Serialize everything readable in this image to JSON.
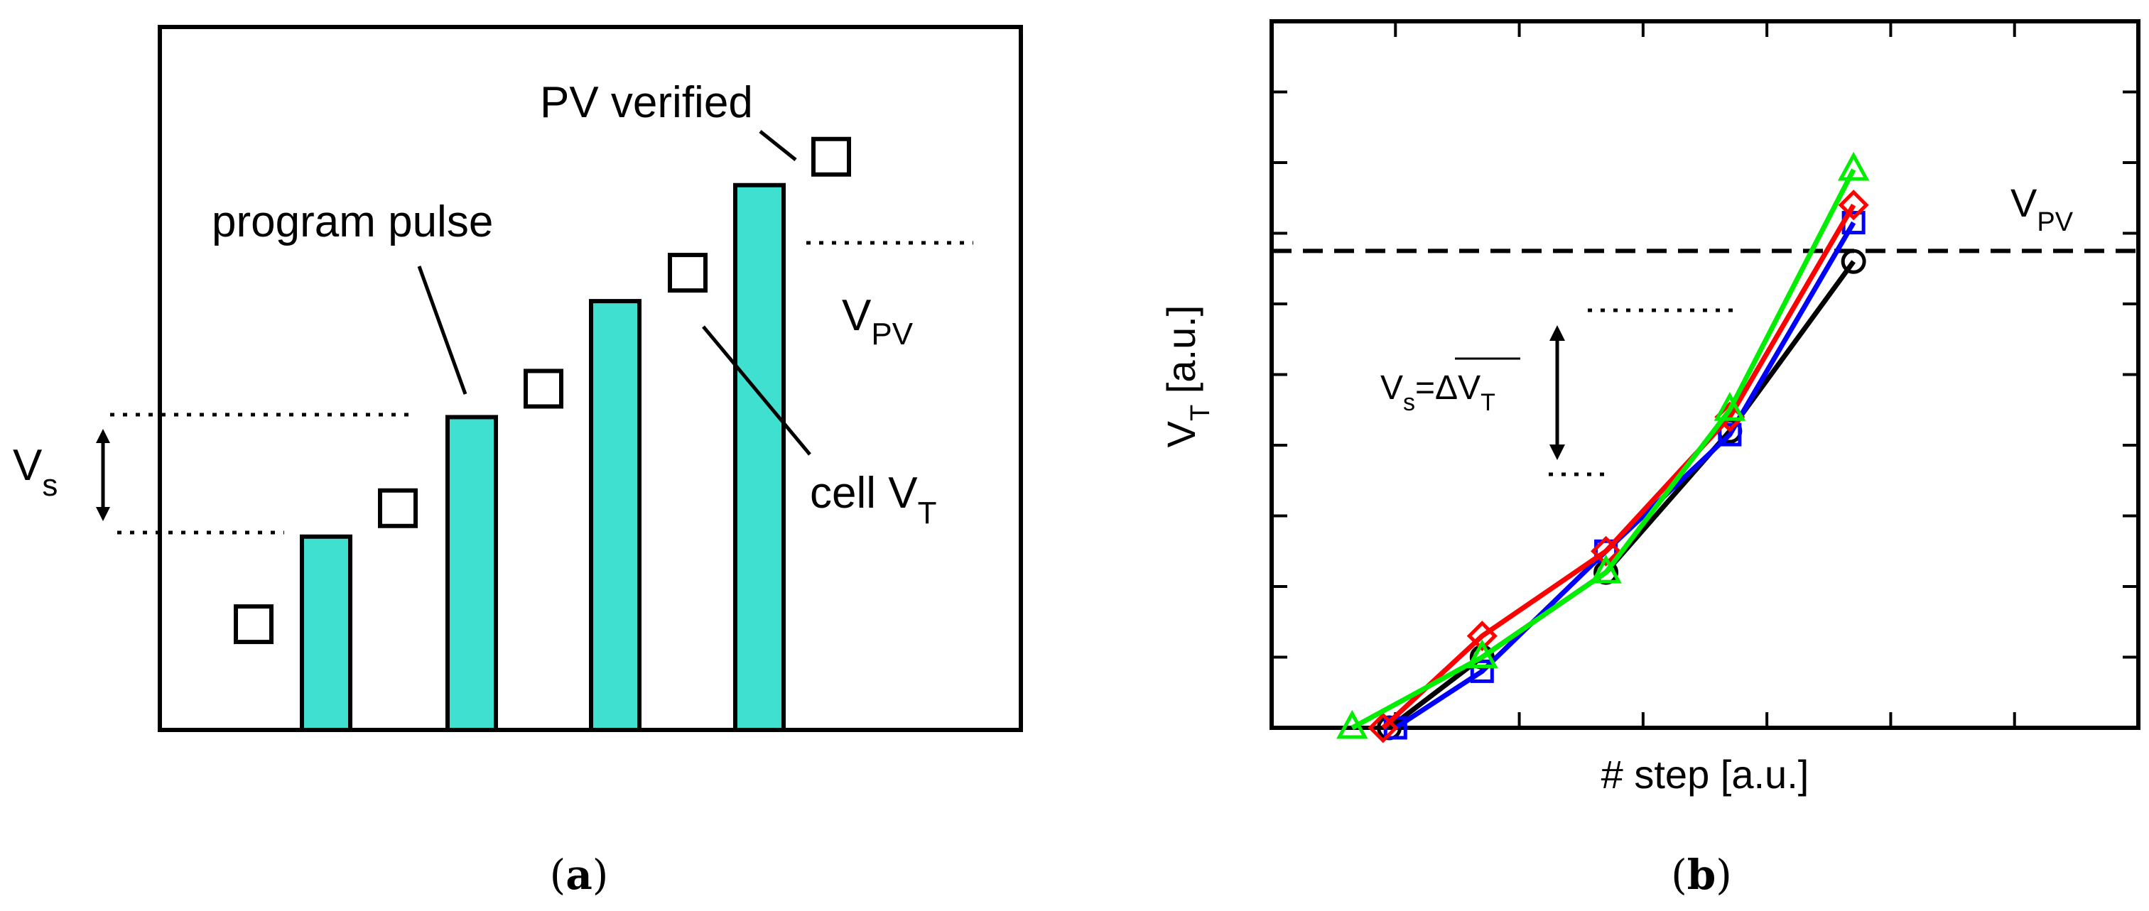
{
  "panel_a": {
    "caption_open": "(",
    "caption_letter": "a",
    "caption_close": ")",
    "labels": {
      "pv_verified": "PV verified",
      "program_pulse": "program pulse",
      "vpv_main": "V",
      "vpv_sub": "PV",
      "cell_main": "cell V",
      "cell_sub": "T",
      "vs_main": "V",
      "vs_sub": "s"
    },
    "bar_heights_rel": [
      0.275,
      0.445,
      0.61,
      0.775
    ],
    "cell_vt_rel": [
      0.11,
      0.275,
      0.445,
      0.61,
      0.775
    ],
    "colors": {
      "bar_fill": "#40e0d0",
      "stroke": "#000000"
    }
  },
  "panel_b": {
    "caption_open": "(",
    "caption_letter": "b",
    "caption_close": ")",
    "xlabel": "# step [a.u.]",
    "ylabel_main": "V",
    "ylabel_sub": "T",
    "ylabel_tail": " [a.u.]",
    "vpv_main": "V",
    "vpv_sub": "PV",
    "vs_annotation_main": "V",
    "vs_annotation_sub": "s",
    "vs_annotation_eq": "=",
    "vs_annotation_delta": "ΔV",
    "vs_annotation_delta_sub": "T",
    "chart_data": {
      "type": "line",
      "xlim": [
        0,
        7
      ],
      "ylim": [
        0,
        10
      ],
      "x_ticks": [
        1,
        2,
        3,
        4,
        5,
        6
      ],
      "y_ticks": [
        1,
        2,
        3,
        4,
        5,
        6,
        7,
        8,
        9
      ],
      "vpv_level": 6.75,
      "grid": false,
      "series": [
        {
          "marker": "circle",
          "color": "#000000",
          "x": [
            0.95,
            1.7,
            2.7,
            3.7,
            4.7
          ],
          "y": [
            0,
            1.0,
            2.2,
            4.2,
            6.6
          ]
        },
        {
          "marker": "square",
          "color": "#0000ff",
          "x": [
            1.0,
            1.7,
            2.7,
            3.7,
            4.7
          ],
          "y": [
            0,
            0.8,
            2.5,
            4.15,
            7.15
          ]
        },
        {
          "marker": "diamond",
          "color": "#ff0000",
          "x": [
            0.9,
            1.7,
            2.7,
            3.7,
            4.7
          ],
          "y": [
            0,
            1.3,
            2.5,
            4.4,
            7.4
          ]
        },
        {
          "marker": "triangle",
          "color": "#00ee00",
          "x": [
            0.65,
            1.7,
            2.7,
            3.7,
            4.7
          ],
          "y": [
            0,
            1.0,
            2.2,
            4.5,
            7.9
          ]
        }
      ]
    }
  }
}
